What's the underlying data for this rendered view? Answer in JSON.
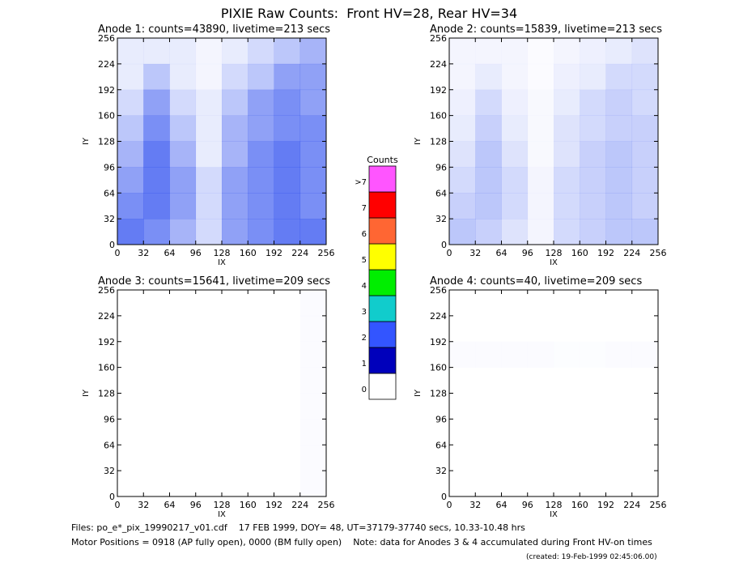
{
  "title": "PIXIE Raw Counts:  Front HV=28, Rear HV=34",
  "chart_data": [
    {
      "type": "heatmap",
      "title": "Anode 1: counts=43890, livetime=213 secs",
      "xlabel": "IX",
      "ylabel": "IY",
      "xlim": [
        0,
        256
      ],
      "ylim": [
        0,
        256
      ],
      "xticks": [
        0,
        32,
        64,
        96,
        128,
        160,
        192,
        224,
        256
      ],
      "yticks": [
        0,
        32,
        64,
        96,
        128,
        160,
        192,
        224,
        256
      ],
      "color": "#2244ee",
      "z": [
        [
          0.7,
          0.6,
          0.4,
          0.2,
          0.5,
          0.6,
          0.7,
          0.7
        ],
        [
          0.6,
          0.7,
          0.5,
          0.2,
          0.5,
          0.6,
          0.7,
          0.6
        ],
        [
          0.5,
          0.7,
          0.5,
          0.2,
          0.5,
          0.6,
          0.7,
          0.6
        ],
        [
          0.4,
          0.7,
          0.4,
          0.1,
          0.4,
          0.6,
          0.7,
          0.6
        ],
        [
          0.3,
          0.6,
          0.3,
          0.1,
          0.4,
          0.5,
          0.6,
          0.6
        ],
        [
          0.2,
          0.5,
          0.2,
          0.1,
          0.3,
          0.5,
          0.6,
          0.5
        ],
        [
          0.1,
          0.3,
          0.1,
          0.05,
          0.2,
          0.3,
          0.5,
          0.5
        ],
        [
          0.1,
          0.1,
          0.1,
          0.05,
          0.1,
          0.2,
          0.3,
          0.4
        ]
      ]
    },
    {
      "type": "heatmap",
      "title": "Anode 2: counts=15839, livetime=213 secs",
      "xlabel": "IX",
      "ylabel": "IY",
      "xlim": [
        0,
        256
      ],
      "ylim": [
        0,
        256
      ],
      "xticks": [
        0,
        32,
        64,
        96,
        128,
        160,
        192,
        224,
        256
      ],
      "yticks": [
        0,
        32,
        64,
        96,
        128,
        160,
        192,
        224,
        256
      ],
      "color": "#2244ee",
      "z": [
        [
          0.3,
          0.25,
          0.15,
          0.05,
          0.2,
          0.25,
          0.3,
          0.3
        ],
        [
          0.25,
          0.3,
          0.2,
          0.05,
          0.2,
          0.25,
          0.3,
          0.25
        ],
        [
          0.2,
          0.3,
          0.2,
          0.05,
          0.2,
          0.25,
          0.3,
          0.25
        ],
        [
          0.15,
          0.3,
          0.15,
          0.03,
          0.15,
          0.25,
          0.3,
          0.25
        ],
        [
          0.1,
          0.25,
          0.1,
          0.03,
          0.15,
          0.2,
          0.25,
          0.25
        ],
        [
          0.08,
          0.2,
          0.08,
          0.03,
          0.1,
          0.2,
          0.25,
          0.2
        ],
        [
          0.05,
          0.1,
          0.05,
          0.02,
          0.08,
          0.1,
          0.2,
          0.2
        ],
        [
          0.05,
          0.05,
          0.05,
          0.02,
          0.05,
          0.08,
          0.1,
          0.15
        ]
      ]
    },
    {
      "type": "heatmap",
      "title": "Anode 3: counts=15641, livetime=209 secs",
      "xlabel": "IX",
      "ylabel": "IY",
      "xlim": [
        0,
        256
      ],
      "ylim": [
        0,
        256
      ],
      "xticks": [
        0,
        32,
        64,
        96,
        128,
        160,
        192,
        224,
        256
      ],
      "yticks": [
        0,
        32,
        64,
        96,
        128,
        160,
        192,
        224,
        256
      ],
      "color": "#2244ee",
      "z": [
        [
          0,
          0,
          0,
          0,
          0,
          0,
          0,
          0.02
        ],
        [
          0,
          0,
          0,
          0,
          0,
          0,
          0,
          0.02
        ],
        [
          0,
          0,
          0,
          0,
          0,
          0,
          0,
          0.02
        ],
        [
          0,
          0,
          0,
          0,
          0,
          0,
          0,
          0.02
        ],
        [
          0,
          0,
          0,
          0,
          0,
          0,
          0,
          0.02
        ],
        [
          0,
          0,
          0,
          0,
          0,
          0,
          0,
          0.02
        ],
        [
          0,
          0,
          0,
          0,
          0,
          0,
          0,
          0.02
        ],
        [
          0,
          0,
          0,
          0,
          0,
          0,
          0,
          0.02
        ]
      ]
    },
    {
      "type": "heatmap",
      "title": "Anode 4: counts=40, livetime=209 secs",
      "xlabel": "IX",
      "ylabel": "IY",
      "xlim": [
        0,
        256
      ],
      "ylim": [
        0,
        256
      ],
      "xticks": [
        0,
        32,
        64,
        96,
        128,
        160,
        192,
        224,
        256
      ],
      "yticks": [
        0,
        32,
        64,
        96,
        128,
        160,
        192,
        224,
        256
      ],
      "color": "#2244ee",
      "z": [
        [
          0,
          0,
          0,
          0,
          0,
          0,
          0,
          0
        ],
        [
          0,
          0,
          0,
          0,
          0,
          0,
          0,
          0
        ],
        [
          0,
          0,
          0,
          0,
          0,
          0,
          0,
          0
        ],
        [
          0,
          0,
          0,
          0,
          0,
          0,
          0,
          0
        ],
        [
          0,
          0,
          0,
          0,
          0,
          0,
          0,
          0
        ],
        [
          0.02,
          0.02,
          0.02,
          0.02,
          0.01,
          0.01,
          0.02,
          0.02
        ],
        [
          0,
          0,
          0,
          0,
          0,
          0,
          0,
          0
        ],
        [
          0,
          0,
          0,
          0,
          0,
          0,
          0,
          0
        ]
      ]
    }
  ],
  "colorbar": {
    "title": "Counts",
    "labels": [
      "0",
      "1",
      "2",
      "3",
      "4",
      "5",
      "6",
      "7",
      ">7"
    ],
    "colors": [
      "#ffffff",
      "#0000bb",
      "#3355ff",
      "#11cccc",
      "#00ee00",
      "#ffff00",
      "#ff6633",
      "#ff0000",
      "#ff55ff"
    ]
  },
  "footer": {
    "files": "Files: po_e*_pix_19990217_v01.cdf    17 FEB 1999, DOY= 48, UT=37179-37740 secs, 10.33-10.48 hrs",
    "motor": "Motor Positions = 0918 (AP fully open), 0000 (BM fully open)    Note: data for Anodes 3 & 4 accumulated during Front HV-on times",
    "created": "(created: 19-Feb-1999 02:45:06.00)"
  }
}
